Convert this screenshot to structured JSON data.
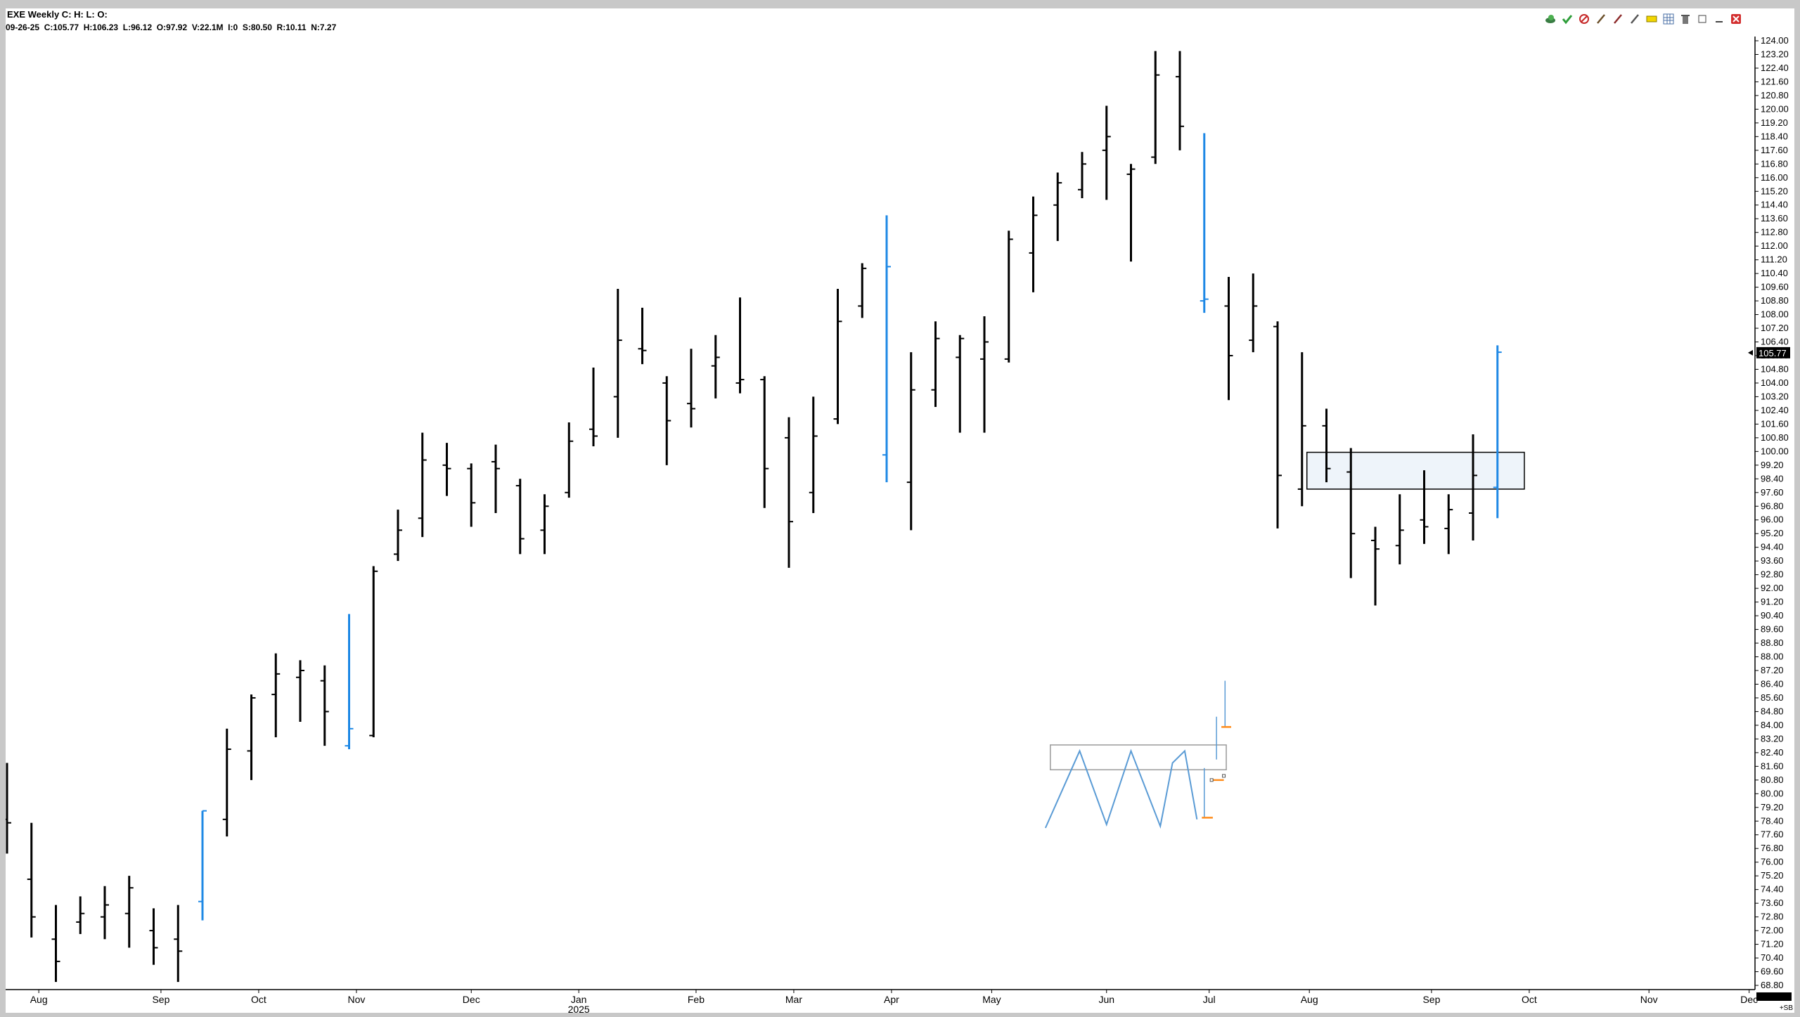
{
  "header": {
    "title": "EXE Weekly C: H: L: O:",
    "info": "09-26-25  C:105.77  H:106.23  L:96.12  O:97.92  V:22.1M  I:0  S:80.50  R:10.11  N:7.27"
  },
  "toolbar": {
    "icons": [
      "cloud-icon",
      "check-icon",
      "ban-icon",
      "pen-icon",
      "pencil-icon",
      "line-icon",
      "rectangle-icon",
      "grid-icon",
      "trash-icon",
      "restore-icon",
      "minimize-icon",
      "close-icon"
    ]
  },
  "colors": {
    "up_bar": "#000000",
    "highlight_bar": "#1e88e5",
    "box_fill": "#eef4fa",
    "sketch": "#5a9bd5",
    "marker": "#ff8c1a",
    "last_price_bg": "#000000"
  },
  "footer": {
    "corner_label": "+SB"
  },
  "chart_data": {
    "type": "ohlc",
    "ylim": [
      68.8,
      124.0
    ],
    "y_ticks": [
      "124.00",
      "123.20",
      "122.40",
      "121.60",
      "120.80",
      "120.00",
      "119.20",
      "118.40",
      "117.60",
      "116.80",
      "116.00",
      "115.20",
      "114.40",
      "113.60",
      "112.80",
      "112.00",
      "111.20",
      "110.40",
      "109.60",
      "108.80",
      "108.00",
      "107.20",
      "106.40",
      "105.60",
      "104.80",
      "104.00",
      "103.20",
      "102.40",
      "101.60",
      "100.80",
      "100.00",
      "99.20",
      "98.40",
      "97.60",
      "96.80",
      "96.00",
      "95.20",
      "94.40",
      "93.60",
      "92.80",
      "92.00",
      "91.20",
      "90.40",
      "89.60",
      "88.80",
      "88.00",
      "87.20",
      "86.40",
      "85.60",
      "84.80",
      "84.00",
      "83.20",
      "82.40",
      "81.60",
      "80.80",
      "80.00",
      "79.20",
      "78.40",
      "77.60",
      "76.80",
      "76.00",
      "75.20",
      "74.40",
      "73.60",
      "72.80",
      "72.00",
      "71.20",
      "70.40",
      "69.60",
      "68.80"
    ],
    "last_price": 105.77,
    "last_price_label": "105.77",
    "x_labels": [
      {
        "label": "Aug",
        "week": 1.3
      },
      {
        "label": "Sep",
        "week": 6.3
      },
      {
        "label": "Oct",
        "week": 10.3
      },
      {
        "label": "Nov",
        "week": 14.3
      },
      {
        "label": "Dec",
        "week": 19.0
      },
      {
        "label": "Jan",
        "week": 23.4
      },
      {
        "label": "2025",
        "week": 23.4,
        "row": 2
      },
      {
        "label": "Feb",
        "week": 28.2
      },
      {
        "label": "Mar",
        "week": 32.2
      },
      {
        "label": "Apr",
        "week": 36.2
      },
      {
        "label": "May",
        "week": 40.3
      },
      {
        "label": "Jun",
        "week": 45.0
      },
      {
        "label": "Jul",
        "week": 49.2
      },
      {
        "label": "Aug",
        "week": 53.3
      },
      {
        "label": "Sep",
        "week": 58.3
      },
      {
        "label": "Oct",
        "week": 62.3
      },
      {
        "label": "Nov",
        "week": 67.2
      },
      {
        "label": "Dec",
        "week": 71.3
      }
    ],
    "bars": [
      {
        "h": 81.8,
        "l": 76.5,
        "o": 78.5,
        "c": 78.3
      },
      {
        "h": 78.3,
        "l": 71.6,
        "o": 75.0,
        "c": 72.8
      },
      {
        "h": 73.5,
        "l": 69.0,
        "o": 71.5,
        "c": 70.2
      },
      {
        "h": 74.0,
        "l": 71.8,
        "o": 72.5,
        "c": 73.0
      },
      {
        "h": 74.6,
        "l": 71.5,
        "o": 72.8,
        "c": 73.5
      },
      {
        "h": 75.2,
        "l": 71.0,
        "o": 73.0,
        "c": 74.5
      },
      {
        "h": 73.3,
        "l": 70.0,
        "o": 72.0,
        "c": 71.0
      },
      {
        "h": 73.5,
        "l": 69.0,
        "o": 71.5,
        "c": 70.8
      },
      {
        "h": 79.0,
        "l": 72.6,
        "o": 73.7,
        "c": 79.0,
        "hl": true
      },
      {
        "h": 83.8,
        "l": 77.5,
        "o": 78.5,
        "c": 82.6
      },
      {
        "h": 85.8,
        "l": 80.8,
        "o": 82.5,
        "c": 85.6
      },
      {
        "h": 88.2,
        "l": 83.3,
        "o": 85.8,
        "c": 87.0
      },
      {
        "h": 87.8,
        "l": 84.2,
        "o": 86.8,
        "c": 87.2
      },
      {
        "h": 87.5,
        "l": 82.8,
        "o": 86.6,
        "c": 84.8
      },
      {
        "h": 90.5,
        "l": 82.6,
        "o": 82.8,
        "c": 83.8,
        "hl": true
      },
      {
        "h": 93.3,
        "l": 83.3,
        "o": 83.4,
        "c": 93.0
      },
      {
        "h": 96.6,
        "l": 93.6,
        "o": 94.0,
        "c": 95.4
      },
      {
        "h": 101.1,
        "l": 95.0,
        "o": 96.1,
        "c": 99.5
      },
      {
        "h": 100.5,
        "l": 97.4,
        "o": 99.2,
        "c": 99.0
      },
      {
        "h": 99.3,
        "l": 95.6,
        "o": 99.0,
        "c": 97.0
      },
      {
        "h": 100.4,
        "l": 96.4,
        "o": 99.4,
        "c": 99.0
      },
      {
        "h": 98.4,
        "l": 94.0,
        "o": 98.0,
        "c": 94.9
      },
      {
        "h": 97.5,
        "l": 94.0,
        "o": 95.4,
        "c": 96.8
      },
      {
        "h": 101.7,
        "l": 97.3,
        "o": 97.6,
        "c": 100.6
      },
      {
        "h": 104.9,
        "l": 100.3,
        "o": 101.3,
        "c": 100.9
      },
      {
        "h": 109.5,
        "l": 100.8,
        "o": 103.2,
        "c": 106.5
      },
      {
        "h": 108.4,
        "l": 105.1,
        "o": 106.0,
        "c": 105.9
      },
      {
        "h": 104.4,
        "l": 99.2,
        "o": 104.0,
        "c": 101.8
      },
      {
        "h": 106.0,
        "l": 101.4,
        "o": 102.8,
        "c": 102.5
      },
      {
        "h": 106.8,
        "l": 103.1,
        "o": 105.0,
        "c": 105.5
      },
      {
        "h": 109.0,
        "l": 103.4,
        "o": 104.0,
        "c": 104.2
      },
      {
        "h": 104.4,
        "l": 96.7,
        "o": 104.2,
        "c": 99.0
      },
      {
        "h": 102.0,
        "l": 93.2,
        "o": 100.8,
        "c": 95.9
      },
      {
        "h": 103.2,
        "l": 96.4,
        "o": 97.6,
        "c": 100.9
      },
      {
        "h": 109.5,
        "l": 101.6,
        "o": 101.9,
        "c": 107.6
      },
      {
        "h": 111.0,
        "l": 107.8,
        "o": 108.5,
        "c": 110.7
      },
      {
        "h": 113.8,
        "l": 98.2,
        "o": 99.8,
        "c": 110.8,
        "hl": true
      },
      {
        "h": 105.8,
        "l": 95.4,
        "o": 98.2,
        "c": 103.6
      },
      {
        "h": 107.6,
        "l": 102.6,
        "o": 103.6,
        "c": 106.6
      },
      {
        "h": 106.8,
        "l": 101.1,
        "o": 105.5,
        "c": 106.6
      },
      {
        "h": 107.9,
        "l": 101.1,
        "o": 105.4,
        "c": 106.4
      },
      {
        "h": 112.9,
        "l": 105.2,
        "o": 105.4,
        "c": 112.4
      },
      {
        "h": 114.9,
        "l": 109.3,
        "o": 111.6,
        "c": 113.8
      },
      {
        "h": 116.3,
        "l": 112.3,
        "o": 114.4,
        "c": 115.7
      },
      {
        "h": 117.5,
        "l": 114.8,
        "o": 115.3,
        "c": 116.8
      },
      {
        "h": 120.2,
        "l": 114.7,
        "o": 117.6,
        "c": 118.4
      },
      {
        "h": 116.8,
        "l": 111.1,
        "o": 116.2,
        "c": 116.5
      },
      {
        "h": 123.4,
        "l": 116.8,
        "o": 117.2,
        "c": 122.0
      },
      {
        "h": 123.4,
        "l": 117.6,
        "o": 121.9,
        "c": 119.0
      },
      {
        "h": 118.6,
        "l": 108.1,
        "o": 108.8,
        "c": 108.9,
        "hl": true
      },
      {
        "h": 110.2,
        "l": 103.0,
        "o": 108.5,
        "c": 105.6
      },
      {
        "h": 110.4,
        "l": 105.8,
        "o": 106.5,
        "c": 108.5
      },
      {
        "h": 107.6,
        "l": 95.5,
        "o": 107.3,
        "c": 98.6
      },
      {
        "h": 105.8,
        "l": 96.8,
        "o": 97.8,
        "c": 101.5
      },
      {
        "h": 102.5,
        "l": 98.2,
        "o": 101.5,
        "c": 99.0
      },
      {
        "h": 100.2,
        "l": 92.6,
        "o": 98.8,
        "c": 95.2
      },
      {
        "h": 95.6,
        "l": 91.0,
        "o": 94.8,
        "c": 94.3
      },
      {
        "h": 97.5,
        "l": 93.4,
        "o": 94.5,
        "c": 95.4
      },
      {
        "h": 98.9,
        "l": 94.6,
        "o": 96.0,
        "c": 95.6
      },
      {
        "h": 97.5,
        "l": 94.0,
        "o": 95.5,
        "c": 96.6
      },
      {
        "h": 101.0,
        "l": 94.8,
        "o": 96.4,
        "c": 98.6
      },
      {
        "h": 106.2,
        "l": 96.1,
        "o": 97.9,
        "c": 105.8,
        "hl": true
      }
    ],
    "annotations": {
      "box": {
        "x1_week": 53.2,
        "x2_week": 62.1,
        "y_top": 99.95,
        "y_bottom": 97.8
      },
      "sketch_box": {
        "x1_week": 42.7,
        "x2_week": 49.9,
        "y_top": 82.85,
        "y_bottom": 81.4
      },
      "sketch_zigzag": [
        [
          42.5,
          78.0
        ],
        [
          43.9,
          82.5
        ],
        [
          45.0,
          78.2
        ],
        [
          46.0,
          82.5
        ],
        [
          47.2,
          78.1
        ],
        [
          47.7,
          81.8
        ],
        [
          48.2,
          82.5
        ],
        [
          48.7,
          78.5
        ]
      ],
      "sketch_ticks": [
        {
          "week": 49.0,
          "y1": 81.5,
          "y2": 78.6
        },
        {
          "week": 49.5,
          "y1": 84.5,
          "y2": 82.0
        },
        {
          "week": 49.85,
          "y1": 86.6,
          "y2": 83.9
        }
      ],
      "sketch_markers": [
        {
          "week1": 49.7,
          "week2": 50.1,
          "y": 83.9
        },
        {
          "week1": 48.9,
          "week2": 49.35,
          "y": 78.6
        },
        {
          "week1": 49.3,
          "week2": 49.8,
          "y": 80.8
        }
      ]
    }
  }
}
